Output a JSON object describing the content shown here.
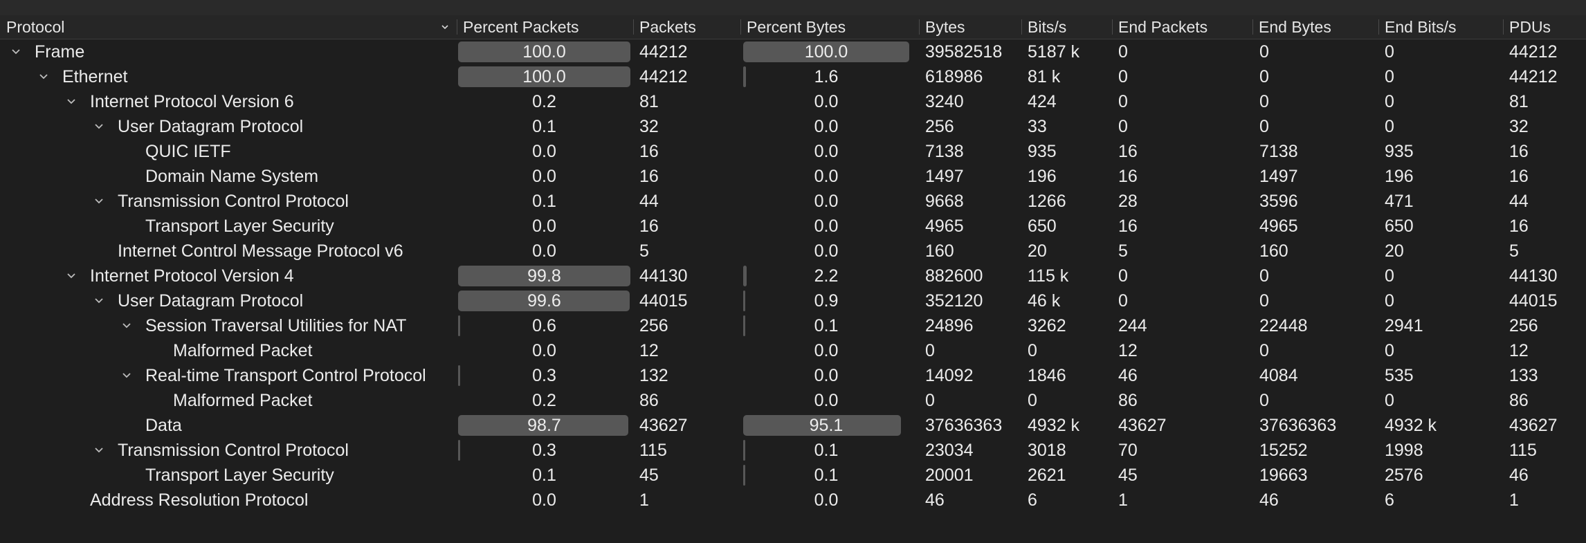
{
  "columns": {
    "protocol": "Protocol",
    "percent_packets": "Percent Packets",
    "packets": "Packets",
    "percent_bytes": "Percent Bytes",
    "bytes": "Bytes",
    "bits_s": "Bits/s",
    "end_packets": "End Packets",
    "end_bytes": "End Bytes",
    "end_bits_s": "End Bits/s",
    "pdus": "PDUs"
  },
  "rows": [
    {
      "name": "Frame",
      "depth": 0,
      "expanded": true,
      "percent_packets": "100.0",
      "packets_fraction": 1.0,
      "packets": "44212",
      "percent_bytes": "100.0",
      "bytes_fraction": 1.0,
      "bytes": "39582518",
      "bits_s": "5187 k",
      "end_packets": "0",
      "end_bytes": "0",
      "end_bits_s": "0",
      "pdus": "44212"
    },
    {
      "name": "Ethernet",
      "depth": 1,
      "expanded": true,
      "percent_packets": "100.0",
      "packets_fraction": 1.0,
      "packets": "44212",
      "percent_bytes": "1.6",
      "bytes_fraction": 0.016,
      "bytes": "618986",
      "bits_s": "81 k",
      "end_packets": "0",
      "end_bytes": "0",
      "end_bits_s": "0",
      "pdus": "44212"
    },
    {
      "name": "Internet Protocol Version 6",
      "depth": 2,
      "expanded": true,
      "percent_packets": "0.2",
      "packets_fraction": 0.002,
      "packets": "81",
      "percent_bytes": "0.0",
      "bytes_fraction": 0.0,
      "bytes": "3240",
      "bits_s": "424",
      "end_packets": "0",
      "end_bytes": "0",
      "end_bits_s": "0",
      "pdus": "81"
    },
    {
      "name": "User Datagram Protocol",
      "depth": 3,
      "expanded": true,
      "percent_packets": "0.1",
      "packets_fraction": 0.001,
      "packets": "32",
      "percent_bytes": "0.0",
      "bytes_fraction": 0.0,
      "bytes": "256",
      "bits_s": "33",
      "end_packets": "0",
      "end_bytes": "0",
      "end_bits_s": "0",
      "pdus": "32"
    },
    {
      "name": "QUIC IETF",
      "depth": 4,
      "expanded": null,
      "percent_packets": "0.0",
      "packets_fraction": 0.0,
      "packets": "16",
      "percent_bytes": "0.0",
      "bytes_fraction": 0.0,
      "bytes": "7138",
      "bits_s": "935",
      "end_packets": "16",
      "end_bytes": "7138",
      "end_bits_s": "935",
      "pdus": "16"
    },
    {
      "name": "Domain Name System",
      "depth": 4,
      "expanded": null,
      "percent_packets": "0.0",
      "packets_fraction": 0.0,
      "packets": "16",
      "percent_bytes": "0.0",
      "bytes_fraction": 0.0,
      "bytes": "1497",
      "bits_s": "196",
      "end_packets": "16",
      "end_bytes": "1497",
      "end_bits_s": "196",
      "pdus": "16"
    },
    {
      "name": "Transmission Control Protocol",
      "depth": 3,
      "expanded": true,
      "percent_packets": "0.1",
      "packets_fraction": 0.001,
      "packets": "44",
      "percent_bytes": "0.0",
      "bytes_fraction": 0.0,
      "bytes": "9668",
      "bits_s": "1266",
      "end_packets": "28",
      "end_bytes": "3596",
      "end_bits_s": "471",
      "pdus": "44"
    },
    {
      "name": "Transport Layer Security",
      "depth": 4,
      "expanded": null,
      "percent_packets": "0.0",
      "packets_fraction": 0.0,
      "packets": "16",
      "percent_bytes": "0.0",
      "bytes_fraction": 0.0,
      "bytes": "4965",
      "bits_s": "650",
      "end_packets": "16",
      "end_bytes": "4965",
      "end_bits_s": "650",
      "pdus": "16"
    },
    {
      "name": "Internet Control Message Protocol v6",
      "depth": 3,
      "expanded": null,
      "percent_packets": "0.0",
      "packets_fraction": 0.0,
      "packets": "5",
      "percent_bytes": "0.0",
      "bytes_fraction": 0.0,
      "bytes": "160",
      "bits_s": "20",
      "end_packets": "5",
      "end_bytes": "160",
      "end_bits_s": "20",
      "pdus": "5"
    },
    {
      "name": "Internet Protocol Version 4",
      "depth": 2,
      "expanded": true,
      "percent_packets": "99.8",
      "packets_fraction": 0.998,
      "packets": "44130",
      "percent_bytes": "2.2",
      "bytes_fraction": 0.022,
      "bytes": "882600",
      "bits_s": "115 k",
      "end_packets": "0",
      "end_bytes": "0",
      "end_bits_s": "0",
      "pdus": "44130"
    },
    {
      "name": "User Datagram Protocol",
      "depth": 3,
      "expanded": true,
      "percent_packets": "99.6",
      "packets_fraction": 0.996,
      "packets": "44015",
      "percent_bytes": "0.9",
      "bytes_fraction": 0.009,
      "bytes": "352120",
      "bits_s": "46 k",
      "end_packets": "0",
      "end_bytes": "0",
      "end_bits_s": "0",
      "pdus": "44015"
    },
    {
      "name": "Session Traversal Utilities for NAT",
      "depth": 4,
      "expanded": true,
      "percent_packets": "0.6",
      "packets_fraction": 0.006,
      "packets": "256",
      "percent_bytes": "0.1",
      "bytes_fraction": 0.001,
      "bytes": "24896",
      "bits_s": "3262",
      "end_packets": "244",
      "end_bytes": "22448",
      "end_bits_s": "2941",
      "pdus": "256"
    },
    {
      "name": "Malformed Packet",
      "depth": 5,
      "expanded": null,
      "percent_packets": "0.0",
      "packets_fraction": 0.0,
      "packets": "12",
      "percent_bytes": "0.0",
      "bytes_fraction": 0.0,
      "bytes": "0",
      "bits_s": "0",
      "end_packets": "12",
      "end_bytes": "0",
      "end_bits_s": "0",
      "pdus": "12"
    },
    {
      "name": "Real-time Transport Control Protocol",
      "depth": 4,
      "expanded": true,
      "percent_packets": "0.3",
      "packets_fraction": 0.003,
      "packets": "132",
      "percent_bytes": "0.0",
      "bytes_fraction": 0.0,
      "bytes": "14092",
      "bits_s": "1846",
      "end_packets": "46",
      "end_bytes": "4084",
      "end_bits_s": "535",
      "pdus": "133"
    },
    {
      "name": "Malformed Packet",
      "depth": 5,
      "expanded": null,
      "percent_packets": "0.2",
      "packets_fraction": 0.002,
      "packets": "86",
      "percent_bytes": "0.0",
      "bytes_fraction": 0.0,
      "bytes": "0",
      "bits_s": "0",
      "end_packets": "86",
      "end_bytes": "0",
      "end_bits_s": "0",
      "pdus": "86"
    },
    {
      "name": "Data",
      "depth": 4,
      "expanded": null,
      "percent_packets": "98.7",
      "packets_fraction": 0.987,
      "packets": "43627",
      "percent_bytes": "95.1",
      "bytes_fraction": 0.951,
      "bytes": "37636363",
      "bits_s": "4932 k",
      "end_packets": "43627",
      "end_bytes": "37636363",
      "end_bits_s": "4932 k",
      "pdus": "43627"
    },
    {
      "name": "Transmission Control Protocol",
      "depth": 3,
      "expanded": true,
      "percent_packets": "0.3",
      "packets_fraction": 0.003,
      "packets": "115",
      "percent_bytes": "0.1",
      "bytes_fraction": 0.001,
      "bytes": "23034",
      "bits_s": "3018",
      "end_packets": "70",
      "end_bytes": "15252",
      "end_bits_s": "1998",
      "pdus": "115"
    },
    {
      "name": "Transport Layer Security",
      "depth": 4,
      "expanded": null,
      "percent_packets": "0.1",
      "packets_fraction": 0.001,
      "packets": "45",
      "percent_bytes": "0.1",
      "bytes_fraction": 0.001,
      "bytes": "20001",
      "bits_s": "2621",
      "end_packets": "45",
      "end_bytes": "19663",
      "end_bits_s": "2576",
      "pdus": "46"
    },
    {
      "name": "Address Resolution Protocol",
      "depth": 2,
      "expanded": null,
      "percent_packets": "0.0",
      "packets_fraction": 0.0,
      "packets": "1",
      "percent_bytes": "0.0",
      "bytes_fraction": 0.0,
      "bytes": "46",
      "bits_s": "6",
      "end_packets": "1",
      "end_bytes": "46",
      "end_bits_s": "6",
      "pdus": "1"
    }
  ]
}
